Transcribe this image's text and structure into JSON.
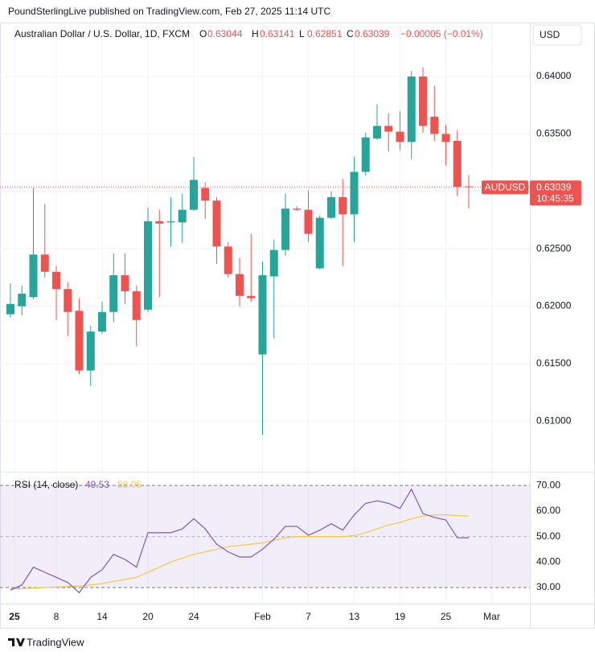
{
  "header": {
    "text": "PoundSterlingLive published on TradingView.com, Feb 27, 2025 11:14 UTC"
  },
  "chart_data": {
    "type": "candlestick",
    "title": "Australian Dollar / U.S. Dollar, 1D, FXCM",
    "ohlc_letters": [
      "O",
      "H",
      "L",
      "C"
    ],
    "change": "−0.00005 (−0.01%)",
    "currency": "USD",
    "symbol": "AUDUSD",
    "countdown": "10:45:35",
    "up_color": "#26a69a",
    "down_color": "#ef5350",
    "open": [
      0.6193,
      0.62,
      0.6208,
      0.6245,
      0.623,
      0.6215,
      0.6196,
      0.6144,
      0.6178,
      0.6195,
      0.6227,
      0.6213,
      0.6197,
      0.6274,
      0.6273,
      0.6273,
      0.6284,
      0.6303,
      0.6292,
      0.6252,
      0.6228,
      0.6209,
      0.6158,
      0.6226,
      0.6249,
      0.6285,
      0.6284,
      0.6233,
      0.6277,
      0.6295,
      0.628,
      0.6317,
      0.6346,
      0.6357,
      0.6352,
      0.6343,
      0.64,
      0.6365,
      0.635,
      0.6344,
      0.63044
    ],
    "high": [
      0.622,
      0.6218,
      0.6303,
      0.6289,
      0.6235,
      0.6221,
      0.6207,
      0.6183,
      0.6204,
      0.6246,
      0.6246,
      0.6218,
      0.6286,
      0.6284,
      0.6295,
      0.6298,
      0.633,
      0.6308,
      0.6295,
      0.6256,
      0.6242,
      0.6263,
      0.6239,
      0.6258,
      0.6298,
      0.6287,
      0.6301,
      0.6279,
      0.63,
      0.6311,
      0.633,
      0.6351,
      0.6376,
      0.6368,
      0.637,
      0.6405,
      0.6408,
      0.6392,
      0.6358,
      0.6353,
      0.63141
    ],
    "low": [
      0.619,
      0.6192,
      0.6206,
      0.6225,
      0.6188,
      0.6174,
      0.6141,
      0.6131,
      0.6176,
      0.6186,
      0.6202,
      0.6165,
      0.6195,
      0.6208,
      0.6252,
      0.6255,
      0.6283,
      0.6276,
      0.6237,
      0.6225,
      0.62,
      0.6204,
      0.6088,
      0.6172,
      0.6244,
      0.6283,
      0.6256,
      0.6232,
      0.6276,
      0.6235,
      0.6256,
      0.6314,
      0.6345,
      0.6335,
      0.6336,
      0.6328,
      0.6351,
      0.6344,
      0.6323,
      0.6296,
      0.62851
    ],
    "close": [
      0.6202,
      0.6211,
      0.6245,
      0.623,
      0.6215,
      0.6195,
      0.6144,
      0.6178,
      0.6195,
      0.6227,
      0.6213,
      0.6188,
      0.6274,
      0.6272,
      0.6274,
      0.6284,
      0.631,
      0.6292,
      0.6252,
      0.6228,
      0.6209,
      0.6207,
      0.6227,
      0.6249,
      0.6285,
      0.6284,
      0.6263,
      0.6277,
      0.6295,
      0.628,
      0.6317,
      0.6347,
      0.6357,
      0.6352,
      0.6343,
      0.64,
      0.6357,
      0.635,
      0.6343,
      0.6304,
      0.63039
    ],
    "ylim": [
      0.6056,
      0.6447
    ],
    "yticks": [
      {
        "value": 0.64,
        "label": "0.64000"
      },
      {
        "value": 0.635,
        "label": "0.63500"
      },
      {
        "value": 0.63,
        "label": "0.63000"
      },
      {
        "value": 0.625,
        "label": "0.62500"
      },
      {
        "value": 0.62,
        "label": "0.62000"
      },
      {
        "value": 0.615,
        "label": "0.61500"
      },
      {
        "value": 0.61,
        "label": "0.61000"
      }
    ],
    "xticks": [
      {
        "value": 0.35,
        "label": "25"
      },
      {
        "value": 4,
        "label": "8"
      },
      {
        "value": 8,
        "label": "14"
      },
      {
        "value": 12,
        "label": "20"
      },
      {
        "value": 16,
        "label": "24"
      },
      {
        "value": 22,
        "label": "Feb"
      },
      {
        "value": 26,
        "label": "7"
      },
      {
        "value": 30,
        "label": "13"
      },
      {
        "value": 34,
        "label": "19"
      },
      {
        "value": 38,
        "label": "25"
      },
      {
        "value": 42,
        "label": "Mar"
      }
    ],
    "grid": true,
    "rsi": {
      "title": "RSI (14, close)",
      "color": "#7e57c2",
      "values": [
        29,
        31,
        38,
        36,
        34,
        32,
        28,
        34,
        37,
        43,
        41,
        38,
        51.5,
        51.5,
        51.5,
        53,
        57,
        53,
        47,
        44,
        42,
        42,
        45,
        49,
        54,
        54,
        50.5,
        52.5,
        55,
        52.5,
        58.5,
        63,
        64,
        63,
        61,
        68.5,
        59,
        57.5,
        56.5,
        49.5,
        49.53
      ]
    },
    "rsi_ma": {
      "color": "#f5c842",
      "values": [
        29.5,
        29.6,
        29.8,
        30,
        30.2,
        30.4,
        30.6,
        31,
        31.6,
        32.4,
        33.2,
        34,
        36,
        38,
        40,
        41.5,
        43,
        44,
        45,
        46,
        46.5,
        47,
        47.5,
        48.5,
        49.5,
        50,
        50,
        50,
        50,
        50,
        50.3,
        51.5,
        53,
        54.5,
        55.5,
        57,
        58,
        58.5,
        58.5,
        58.2,
        58.05
      ]
    },
    "rsi_ylim": [
      23.7,
      75.1
    ],
    "rsi_yticks": [
      {
        "value": 70,
        "label": "70.00"
      },
      {
        "value": 60,
        "label": "60.00"
      },
      {
        "value": 50,
        "label": "50.00"
      },
      {
        "value": 40,
        "label": "40.00"
      },
      {
        "value": 30,
        "label": "30.00"
      }
    ],
    "rsi_bands": [
      70,
      50,
      30
    ]
  },
  "footer": {
    "brand": "TradingView"
  }
}
